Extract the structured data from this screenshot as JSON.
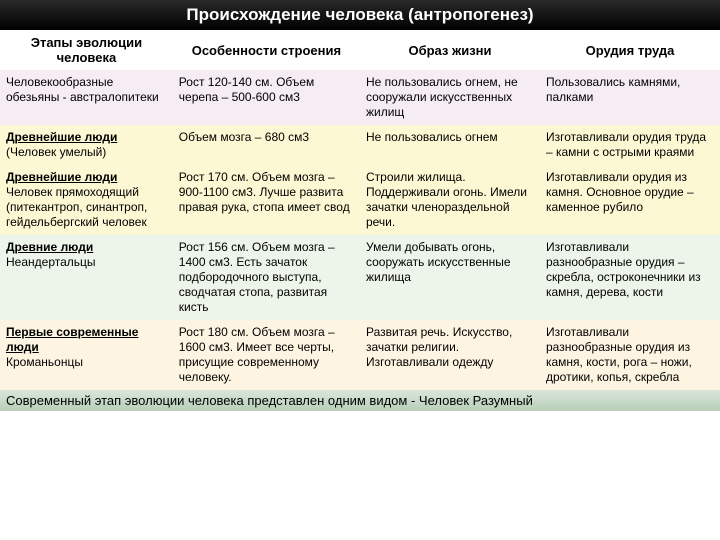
{
  "title": "Происхождение человека (антропогенез)",
  "headers": [
    "Этапы эволюции человека",
    "Особенности строения",
    "Образ жизни",
    "Орудия труда"
  ],
  "rows": [
    {
      "stage_title": "",
      "stage_sub": "Человекообразные обезьяны - австралопитеки",
      "features": "Рост 120-140 см. Объем черепа – 500-600 см3",
      "lifestyle": "Не пользовались огнем, не сооружали искусственных жилищ",
      "tools": "Пользовались камнями, палками"
    },
    {
      "stage_title": "Древнейшие люди",
      "stage_sub": "(Человек умелый)",
      "features": "Объем мозга – 680 см3",
      "lifestyle": "Не пользовались огнем",
      "tools": "Изготавливали орудия труда – камни с острыми краями"
    },
    {
      "stage_title": "Древнейшие люди",
      "stage_sub": "Человек прямоходящий (питекантроп, синантроп, гейдельбергский человек",
      "features": "Рост 170 см. Объем мозга – 900-1100 см3. Лучше развита правая рука, стопа имеет свод",
      "lifestyle": "Строили жилища. Поддерживали огонь. Имели зачатки членораздельной речи.",
      "tools": "Изготавливали орудия из камня. Основное орудие – каменное рубило"
    },
    {
      "stage_title": "Древние люди",
      "stage_sub": "Неандертальцы",
      "features": "Рост 156 см. Объем мозга –1400 см3. Есть зачаток подбородочного выступа, сводчатая стопа, развитая кисть",
      "lifestyle": "Умели добывать огонь, сооружать искусственные жилища",
      "tools": "Изготавливали разнообразные орудия – скребла, остроконечники из камня, дерева, кости"
    },
    {
      "stage_title": "Первые современные люди",
      "stage_sub": "Кроманьонцы",
      "features": "Рост 180 см. Объем мозга –1600 см3. Имеет все черты, присущие современному человеку.",
      "lifestyle": "Развитая речь. Искусство, зачатки религии. Изготавливали одежду",
      "tools": "Изготавливали разнообразные орудия из камня, кости, рога – ножи, дротики, копья, скребла"
    }
  ],
  "footer": "Современный этап эволюции человека представлен одним видом - Человек Разумный"
}
